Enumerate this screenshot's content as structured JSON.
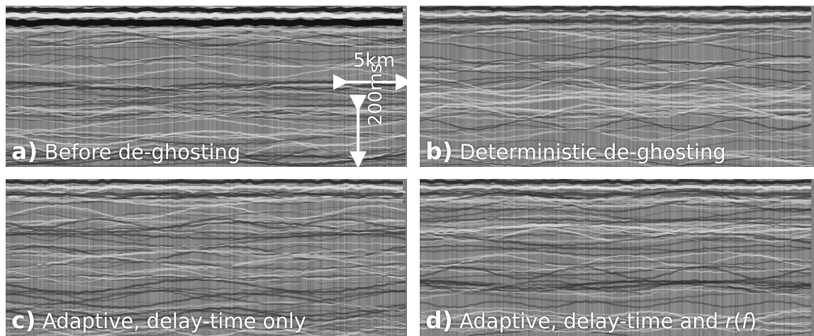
{
  "panels": [
    {
      "id": "a",
      "letter": "a)",
      "caption": "Before de-ghosting",
      "caption_suffix": "",
      "seed": 11,
      "strong_top": true
    },
    {
      "id": "b",
      "letter": "b)",
      "caption": "Deterministic de-ghosting",
      "caption_suffix": "",
      "seed": 23,
      "strong_top": false
    },
    {
      "id": "c",
      "letter": "c)",
      "caption": "Adaptive, delay-time only",
      "caption_suffix": "",
      "seed": 37,
      "strong_top": false
    },
    {
      "id": "d",
      "letter": "d)",
      "caption": "Adaptive, delay-time and ",
      "caption_suffix": ")",
      "seed": 51,
      "strong_top": false,
      "caption_math": {
        "r": "r",
        "open": "(",
        "f": "f"
      }
    }
  ],
  "scale": {
    "horizontal": "5km",
    "vertical": "200ms"
  },
  "colors": {
    "text": "#ffffff",
    "background": "#ffffff"
  }
}
